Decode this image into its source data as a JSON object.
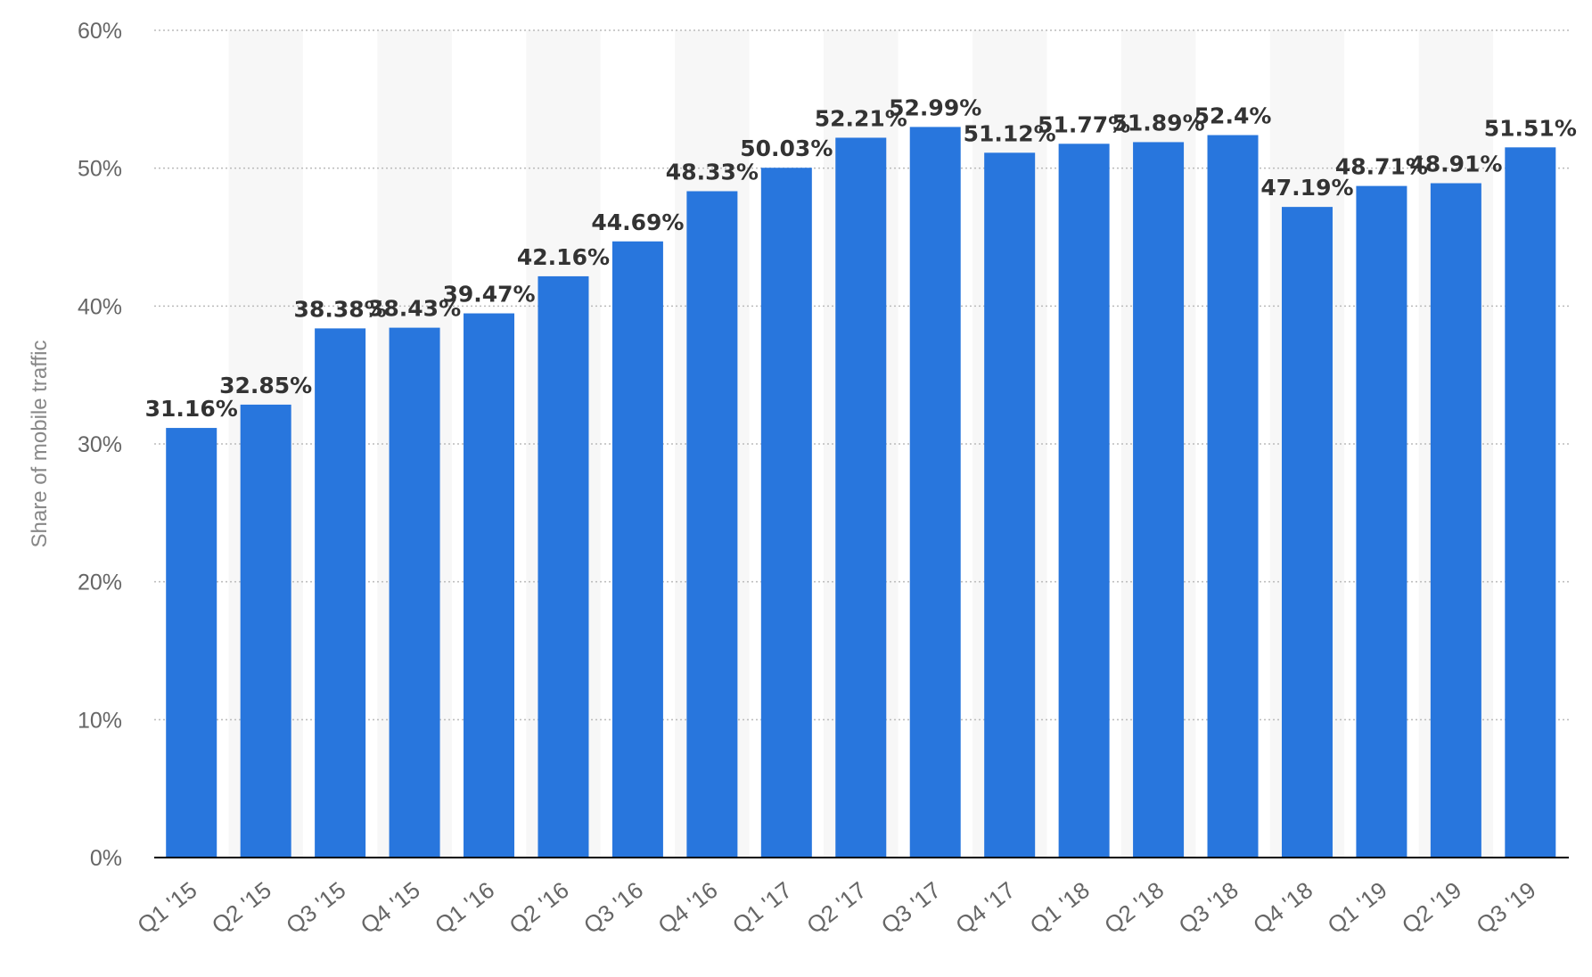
{
  "chart_data": {
    "type": "bar",
    "title": "",
    "xlabel": "",
    "ylabel": "Share of mobile traffic",
    "categories": [
      "Q1 '15",
      "Q2 '15",
      "Q3 '15",
      "Q4 '15",
      "Q1 '16",
      "Q2 '16",
      "Q3 '16",
      "Q4 '16",
      "Q1 '17",
      "Q2 '17",
      "Q3 '17",
      "Q4 '17",
      "Q1 '18",
      "Q2 '18",
      "Q3 '18",
      "Q4 '18",
      "Q1 '19",
      "Q2 '19",
      "Q3 '19"
    ],
    "values": [
      31.16,
      32.85,
      38.38,
      38.43,
      39.47,
      42.16,
      44.69,
      48.33,
      50.03,
      52.21,
      52.99,
      51.12,
      51.77,
      51.89,
      52.4,
      47.19,
      48.71,
      48.91,
      51.51
    ],
    "data_labels": [
      "31.16%",
      "32.85%",
      "38.38%",
      "38.43%",
      "39.47%",
      "42.16%",
      "44.69%",
      "48.33%",
      "50.03%",
      "52.21%",
      "52.99%",
      "51.12%",
      "51.77%",
      "51.89%",
      "52.4%",
      "47.19%",
      "48.71%",
      "48.91%",
      "51.51%"
    ],
    "ylim": [
      0,
      60
    ],
    "yticks": [
      0,
      10,
      20,
      30,
      40,
      50,
      60
    ],
    "ytick_labels": [
      "0%",
      "10%",
      "20%",
      "30%",
      "40%",
      "50%",
      "60%"
    ],
    "grid": true,
    "legend": "none",
    "colors": {
      "bar": "#2876dd",
      "alt_band": "#f7f7f7",
      "grid": "#bbbbbb",
      "baseline": "#000000"
    }
  }
}
